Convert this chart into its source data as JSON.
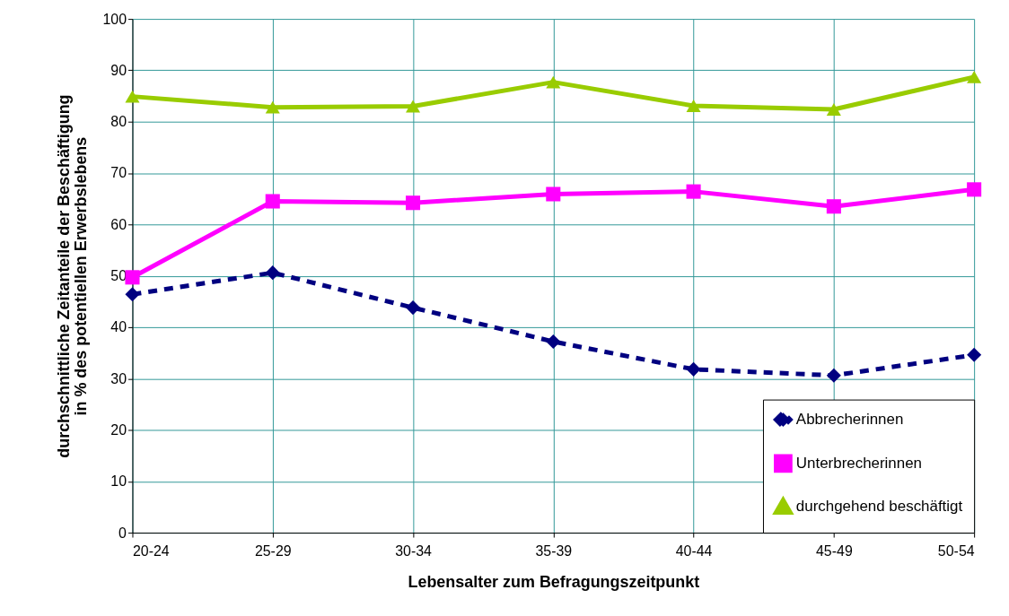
{
  "chart_data": {
    "type": "line",
    "xlabel": "Lebensalter zum Befragungszeitpunkt",
    "ylabel": "durchschnittliche Zeitanteile der Beschäftigung\nin % des potentiellen Erwerbslebens",
    "categories": [
      "20-24",
      "25-29",
      "30-34",
      "35-39",
      "40-44",
      "45-49",
      "50-54"
    ],
    "series": [
      {
        "name": "Abbrecherinnen",
        "color": "#000080",
        "marker": "diamond",
        "line_style": "dashed",
        "values": [
          46.4,
          50.6,
          43.8,
          37.2,
          31.8,
          30.6,
          34.6
        ]
      },
      {
        "name": "Unterbrecherinnen",
        "color": "#ff00ff",
        "marker": "square",
        "line_style": "solid",
        "values": [
          49.7,
          64.5,
          64.2,
          65.9,
          66.4,
          63.5,
          66.8
        ]
      },
      {
        "name": "durchgehend beschäftigt",
        "color": "#99cc00",
        "marker": "triangle",
        "line_style": "solid",
        "values": [
          84.9,
          82.8,
          83.0,
          87.7,
          83.1,
          82.4,
          88.7
        ]
      }
    ],
    "ylim": [
      0,
      100
    ],
    "yticks": [
      0,
      10,
      20,
      30,
      40,
      50,
      60,
      70,
      80,
      90,
      100
    ],
    "grid": true,
    "legend": "bottom right"
  }
}
